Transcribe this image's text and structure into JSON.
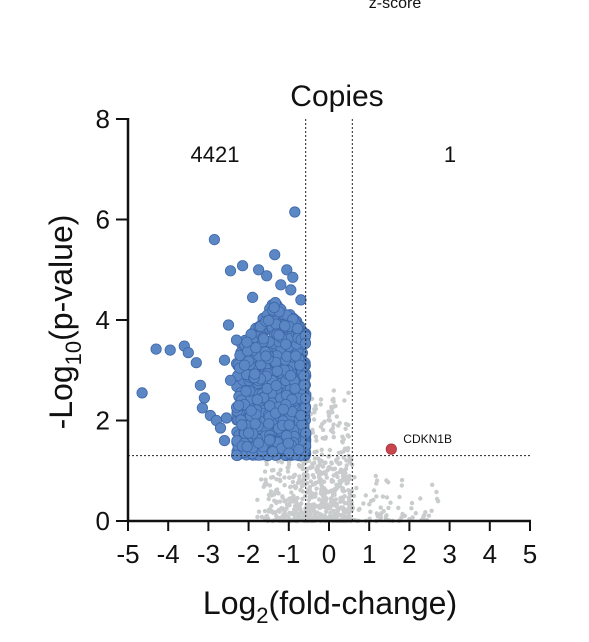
{
  "top_text": "z-score",
  "chart_data": {
    "type": "scatter",
    "title": "Copies",
    "xlabel_main": "Log",
    "xlabel_sub": "2",
    "xlabel_rest": "(fold-change)",
    "ylabel_main": "-Log",
    "ylabel_sub": "10",
    "ylabel_rest": "(p-value)",
    "xlim": [
      -5,
      5
    ],
    "ylim": [
      0,
      8
    ],
    "x_ticks": [
      -5,
      -4,
      -3,
      -2,
      -1,
      0,
      1,
      2,
      3,
      4,
      5
    ],
    "y_ticks": [
      0,
      2,
      4,
      6,
      8
    ],
    "fc_threshold": [
      -0.58,
      0.58
    ],
    "p_threshold": 1.3,
    "down_count": "4421",
    "up_count": "1",
    "colors": {
      "down": "#5b87c5",
      "down_edge": "#3e67a8",
      "up": "#c9454d",
      "ns": "#c9cccc"
    },
    "highlighted": [
      {
        "gene": "CDKN1B",
        "x": 1.55,
        "y": 1.43
      }
    ],
    "down_outliers": [
      [
        -4.65,
        2.55
      ],
      [
        -4.3,
        3.42
      ],
      [
        -3.95,
        3.4
      ],
      [
        -3.6,
        3.48
      ],
      [
        -3.5,
        3.35
      ],
      [
        -3.3,
        3.15
      ],
      [
        -3.2,
        2.7
      ],
      [
        -3.1,
        2.45
      ],
      [
        -3.15,
        2.25
      ],
      [
        -2.95,
        2.1
      ],
      [
        -2.8,
        2.0
      ],
      [
        -2.7,
        1.85
      ],
      [
        -2.6,
        1.6
      ],
      [
        -2.85,
        5.6
      ],
      [
        -2.45,
        4.98
      ],
      [
        -2.15,
        5.08
      ],
      [
        -1.75,
        5.0
      ],
      [
        -1.55,
        4.88
      ],
      [
        -1.35,
        5.3
      ],
      [
        -1.05,
        5.0
      ],
      [
        -0.9,
        4.85
      ],
      [
        -0.85,
        6.15
      ],
      [
        -2.5,
        3.9
      ],
      [
        -2.3,
        3.6
      ],
      [
        -2.6,
        3.2
      ],
      [
        -0.7,
        4.4
      ],
      [
        -0.95,
        4.6
      ],
      [
        -1.2,
        4.7
      ],
      [
        -1.9,
        4.45
      ],
      [
        -2.1,
        3.1
      ],
      [
        -2.45,
        2.8
      ],
      [
        -2.25,
        2.3
      ],
      [
        -2.0,
        1.75
      ],
      [
        -1.75,
        1.55
      ],
      [
        -1.4,
        1.38
      ],
      [
        -1.0,
        1.35
      ],
      [
        -0.75,
        1.42
      ],
      [
        -0.7,
        2.1
      ],
      [
        -2.55,
        2.05
      ]
    ],
    "down_cloud": {
      "n": 900,
      "x_range": [
        -2.3,
        -0.58
      ],
      "y_range": [
        1.3,
        4.4
      ],
      "seed": 7
    },
    "ns_cloud": {
      "n": 700,
      "seed": 13
    }
  }
}
